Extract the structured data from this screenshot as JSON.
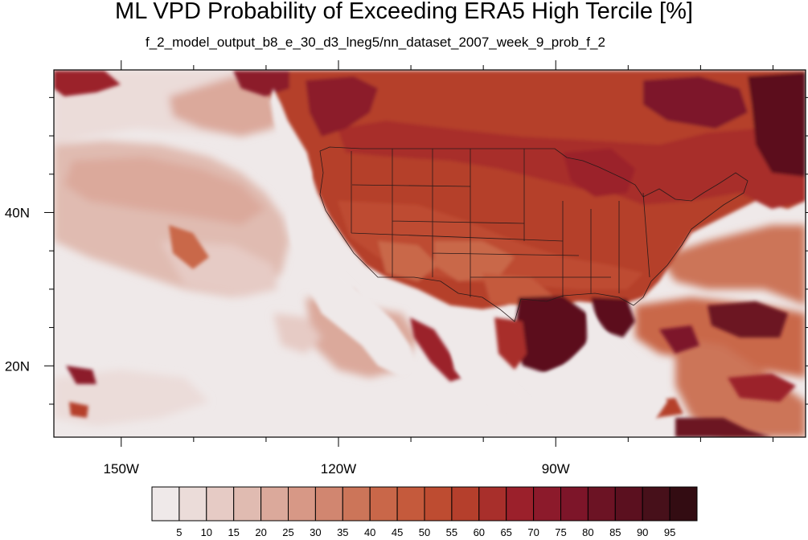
{
  "title": "ML VPD Probability of Exceeding ERA5 High Tercile [%]",
  "subtitle": "f_2_model_output_b8_e_30_d3_lneg5/nn_dataset_2007_week_9_prob_f_2",
  "axes": {
    "lon_ticks": [
      {
        "value": -150,
        "label": "150W"
      },
      {
        "value": -120,
        "label": "120W"
      },
      {
        "value": -90,
        "label": "90W"
      }
    ],
    "lat_ticks": [
      {
        "value": 40,
        "label": "40N"
      },
      {
        "value": 20,
        "label": "20N"
      }
    ],
    "lon_range": [
      -159.3,
      -55.5
    ],
    "lat_range": [
      10.7,
      58.6
    ]
  },
  "colorbar": {
    "labels": [
      "5",
      "10",
      "15",
      "20",
      "25",
      "30",
      "35",
      "40",
      "45",
      "50",
      "55",
      "60",
      "65",
      "70",
      "75",
      "80",
      "85",
      "90",
      "95"
    ],
    "colors": [
      "#efe9e9",
      "#ebdcd9",
      "#e6cbc5",
      "#e0bbb1",
      "#dba99b",
      "#d79886",
      "#d18670",
      "#cc7559",
      "#c96749",
      "#c55a3c",
      "#be4c31",
      "#b53f2c",
      "#a82f2b",
      "#9b202b",
      "#8c1a2b",
      "#7d1529",
      "#6c1324",
      "#5b101f",
      "#47101a",
      "#330c12"
    ]
  }
}
